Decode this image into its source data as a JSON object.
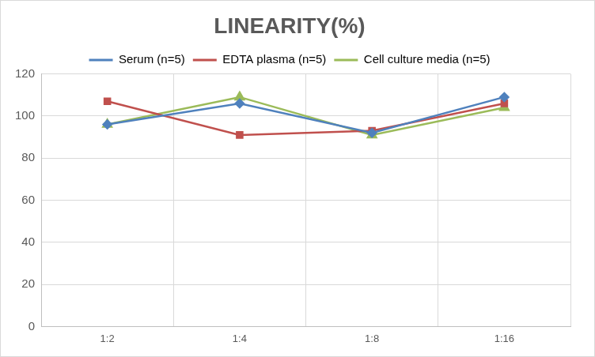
{
  "chart_data": {
    "type": "line",
    "title": "LINEARITY(%)",
    "categories": [
      "1:2",
      "1:4",
      "1:8",
      "1:16"
    ],
    "series": [
      {
        "name": "Serum (n=5)",
        "color": "#4f81bd",
        "marker": "diamond",
        "line_style": "solid",
        "values": [
          96,
          106,
          92,
          109
        ]
      },
      {
        "name": "EDTA plasma (n=5)",
        "color": "#c0504d",
        "marker": "square",
        "line_style": "solid",
        "values": [
          107,
          91,
          93,
          106
        ]
      },
      {
        "name": "Cell culture media (n=5)",
        "color": "#9bbb59",
        "marker": "triangle",
        "line_style": "solid",
        "values": [
          96,
          109,
          91,
          104
        ]
      }
    ],
    "ylim": [
      0,
      120
    ],
    "yticks": [
      0,
      20,
      40,
      60,
      80,
      100,
      120
    ],
    "grid": true,
    "legend": "top"
  }
}
